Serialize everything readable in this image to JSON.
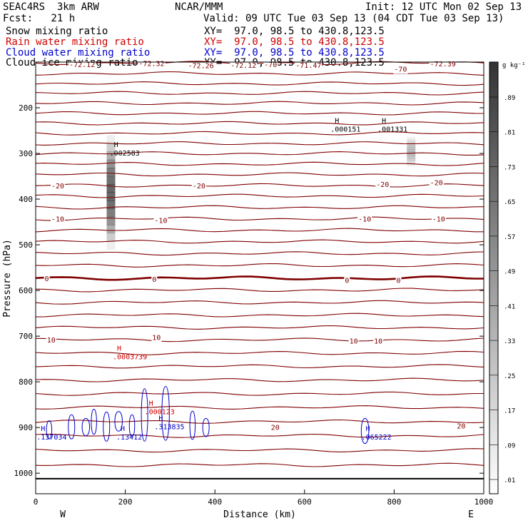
{
  "header": {
    "model": "SEAC4RS  3km ARW",
    "center": "NCAR/MMM",
    "init": "Init: 12 UTC Mon 02 Sep 13",
    "fcst": "Fcst:   21 h",
    "valid": "Valid: 09 UTC Tue 03 Sep 13 (04 CDT Tue 03 Sep 13)",
    "fields": [
      {
        "label": "Snow mixing ratio",
        "xy": "XY=  97.0, 98.5 to 430.8,123.5",
        "color": "#000000"
      },
      {
        "label": "Rain water mixing ratio",
        "xy": "XY=  97.0, 98.5 to 430.8,123.5",
        "color": "#d10000"
      },
      {
        "label": "Cloud water mixing ratio",
        "xy": "XY=  97.0, 98.5 to 430.8,123.5",
        "color": "#0000cc"
      },
      {
        "label": "Cloud ice mixing ratio",
        "xy": "XY=  97.0, 98.5 to 430.8,123.5",
        "color": "#000000"
      }
    ]
  },
  "chart_data": {
    "type": "cross-section",
    "xlabel": "Distance (km)",
    "ylabel": "Pressure (hPa)",
    "xlim": [
      0,
      1000
    ],
    "ylim": [
      1045,
      100
    ],
    "x_ticks": [
      0,
      200,
      400,
      600,
      800,
      1000
    ],
    "y_ticks": [
      200,
      300,
      400,
      500,
      600,
      700,
      800,
      900,
      1000
    ],
    "x_end_labels": {
      "left": "W",
      "right": "E"
    },
    "colorbar": {
      "unit": "g kg⁻¹",
      "labels": [
        ".89",
        ".81",
        ".73",
        ".65",
        ".57",
        ".49",
        ".41",
        ".33",
        ".25",
        ".17",
        ".09",
        ".01"
      ]
    },
    "temperature_contours": {
      "color": "#800000",
      "pressures": [
        102,
        125,
        147,
        168,
        190,
        212,
        234,
        256,
        278,
        300,
        323,
        346,
        370,
        393,
        418,
        443,
        468,
        493,
        519,
        545,
        573,
        599,
        626,
        654,
        681,
        708,
        737,
        766,
        796,
        826,
        856,
        887,
        918,
        950,
        982
      ],
      "bold_pressure": 573,
      "labels": [
        {
          "text": "-72.12",
          "x": 75,
          "p": 105
        },
        {
          "text": "-72.32",
          "x": 230,
          "p": 102
        },
        {
          "text": "-72.26",
          "x": 340,
          "p": 107
        },
        {
          "text": "-72.12",
          "x": 435,
          "p": 106
        },
        {
          "text": "-70",
          "x": 510,
          "p": 105
        },
        {
          "text": "-71.47",
          "x": 580,
          "p": 106
        },
        {
          "text": "-70",
          "x": 800,
          "p": 115
        },
        {
          "text": "-72.39",
          "x": 880,
          "p": 103
        },
        {
          "text": "-20",
          "x": 35,
          "p": 370
        },
        {
          "text": "-20",
          "x": 350,
          "p": 370
        },
        {
          "text": "-20",
          "x": 760,
          "p": 367
        },
        {
          "text": "-20",
          "x": 880,
          "p": 363
        },
        {
          "text": "-10",
          "x": 35,
          "p": 443
        },
        {
          "text": "-10",
          "x": 265,
          "p": 446
        },
        {
          "text": "-10",
          "x": 720,
          "p": 443
        },
        {
          "text": "-10",
          "x": 885,
          "p": 443
        },
        {
          "text": "0",
          "x": 20,
          "p": 573
        },
        {
          "text": "0",
          "x": 260,
          "p": 575
        },
        {
          "text": "0",
          "x": 690,
          "p": 577
        },
        {
          "text": "0",
          "x": 805,
          "p": 577
        },
        {
          "text": "10",
          "x": 25,
          "p": 708
        },
        {
          "text": "10",
          "x": 260,
          "p": 702
        },
        {
          "text": "10",
          "x": 700,
          "p": 710
        },
        {
          "text": "10",
          "x": 755,
          "p": 710
        },
        {
          "text": "20",
          "x": 525,
          "p": 899
        },
        {
          "text": "20",
          "x": 940,
          "p": 896
        }
      ]
    },
    "maxima": [
      {
        "label": ".002583",
        "x": 165,
        "p": 292,
        "color": "#000000"
      },
      {
        "label": ".000151",
        "x": 658,
        "p": 240,
        "color": "#000000"
      },
      {
        "label": ".001331",
        "x": 763,
        "p": 240,
        "color": "#000000"
      },
      {
        "label": ".0003739",
        "x": 172,
        "p": 738,
        "color": "#d10000"
      },
      {
        "label": ".000123",
        "x": 243,
        "p": 858,
        "color": "#d10000"
      },
      {
        "label": ".313835",
        "x": 265,
        "p": 891,
        "color": "#0000cc"
      },
      {
        "label": ".13412",
        "x": 180,
        "p": 914,
        "color": "#0000cc"
      },
      {
        "label": ".137034",
        "x": 2,
        "p": 914,
        "color": "#0000cc"
      },
      {
        "label": ".065222",
        "x": 727,
        "p": 914,
        "color": "#0000cc"
      }
    ],
    "shaded_regions": [
      {
        "name": "snow-column-west",
        "x": 168,
        "p_top": 260,
        "p_bottom": 510,
        "max": 0.6
      },
      {
        "name": "snow-column-east",
        "x": 838,
        "p_top": 262,
        "p_bottom": 330,
        "max": 0.25
      }
    ],
    "cloud_water_cells": [
      {
        "x": 30,
        "p_top": 885,
        "p_bottom": 925
      },
      {
        "x": 80,
        "p_top": 872,
        "p_bottom": 925
      },
      {
        "x": 112,
        "p_top": 880,
        "p_bottom": 918
      },
      {
        "x": 130,
        "p_top": 860,
        "p_bottom": 915
      },
      {
        "x": 158,
        "p_top": 866,
        "p_bottom": 930
      },
      {
        "x": 185,
        "p_top": 865,
        "p_bottom": 908
      },
      {
        "x": 215,
        "p_top": 872,
        "p_bottom": 920
      },
      {
        "x": 243,
        "p_top": 815,
        "p_bottom": 930
      },
      {
        "x": 290,
        "p_top": 810,
        "p_bottom": 928
      },
      {
        "x": 350,
        "p_top": 864,
        "p_bottom": 926
      },
      {
        "x": 380,
        "p_top": 880,
        "p_bottom": 920
      },
      {
        "x": 735,
        "p_top": 880,
        "p_bottom": 935
      }
    ],
    "surface_pressure": 1012
  }
}
